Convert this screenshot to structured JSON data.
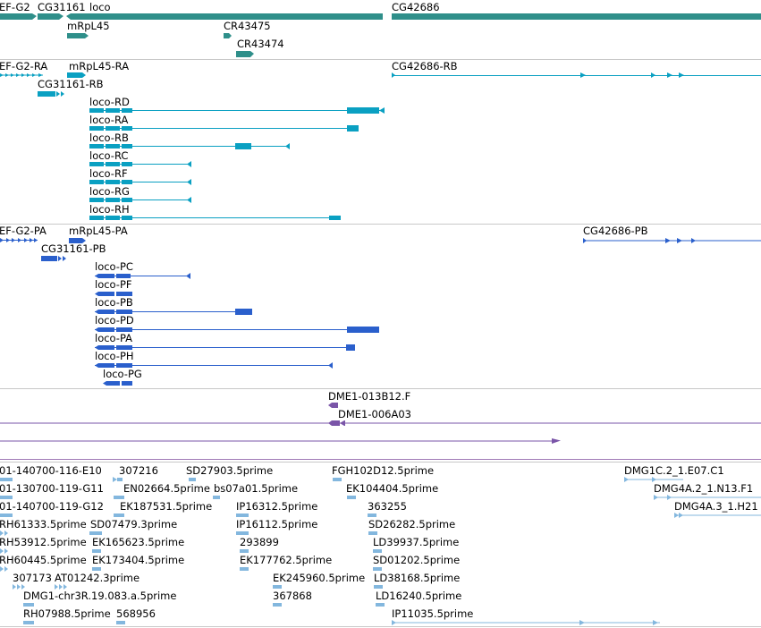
{
  "colors": {
    "gene": "#2f8f8a",
    "transcript_rna": "#0aa0c2",
    "protein": "#2a5fcc",
    "clone": "#7a55a8",
    "est": "#83b7de",
    "separator": "#c8c8c8"
  },
  "tracks": {
    "genes": {
      "labels": [
        {
          "text": "EF-G2"
        },
        {
          "text": "CG31161"
        },
        {
          "text": "loco"
        },
        {
          "text": "CG42686"
        },
        {
          "text": "mRpL45"
        },
        {
          "text": "CR43475"
        },
        {
          "text": "CR43474"
        }
      ]
    },
    "transcripts": {
      "labels": [
        {
          "text": "EF-G2-RA"
        },
        {
          "text": "mRpL45-RA"
        },
        {
          "text": "CG42686-RB"
        },
        {
          "text": "CG31161-RB"
        },
        {
          "text": "loco-RD"
        },
        {
          "text": "loco-RA"
        },
        {
          "text": "loco-RB"
        },
        {
          "text": "loco-RC"
        },
        {
          "text": "loco-RF"
        },
        {
          "text": "loco-RG"
        },
        {
          "text": "loco-RH"
        }
      ]
    },
    "proteins": {
      "labels": [
        {
          "text": "EF-G2-PA"
        },
        {
          "text": "mRpL45-PA"
        },
        {
          "text": "CG42686-PB"
        },
        {
          "text": "CG31161-PB"
        },
        {
          "text": "loco-PC"
        },
        {
          "text": "loco-PF"
        },
        {
          "text": "loco-PB"
        },
        {
          "text": "loco-PD"
        },
        {
          "text": "loco-PA"
        },
        {
          "text": "loco-PH"
        },
        {
          "text": "loco-PG"
        }
      ]
    },
    "clones": {
      "labels": [
        {
          "text": "DME1-013B12.F"
        },
        {
          "text": "DME1-006A03"
        }
      ]
    },
    "ests": {
      "labels": [
        {
          "text": "01-140700-116-E10"
        },
        {
          "text": "307216"
        },
        {
          "text": "SD27903.5prime"
        },
        {
          "text": "FGH102D12.5prime"
        },
        {
          "text": "DMG1C.2_1.E07.C1"
        },
        {
          "text": "01-130700-119-G11"
        },
        {
          "text": "EN02664.5prime"
        },
        {
          "text": "bs07a01.5prime"
        },
        {
          "text": "EK104404.5prime"
        },
        {
          "text": "DMG4A.2_1.N13.F1"
        },
        {
          "text": "01-140700-119-G12"
        },
        {
          "text": "EK187531.5prime"
        },
        {
          "text": "IP16312.5prime"
        },
        {
          "text": "363255"
        },
        {
          "text": "DMG4A.3_1.H21"
        },
        {
          "text": "RH61333.5prime"
        },
        {
          "text": "SD07479.3prime"
        },
        {
          "text": "IP16112.5prime"
        },
        {
          "text": "SD26282.5prime"
        },
        {
          "text": "RH53912.5prime"
        },
        {
          "text": "EK165623.5prime"
        },
        {
          "text": "293899"
        },
        {
          "text": "LD39937.5prime"
        },
        {
          "text": "RH60445.5prime"
        },
        {
          "text": "EK173404.5prime"
        },
        {
          "text": "EK177762.5prime"
        },
        {
          "text": "SD01202.5prime"
        },
        {
          "text": "307173"
        },
        {
          "text": "AT01242.3prime"
        },
        {
          "text": "EK245960.5prime"
        },
        {
          "text": "LD38168.5prime"
        },
        {
          "text": "DMG1-chr3R.19.083.a.5prime"
        },
        {
          "text": "367868"
        },
        {
          "text": "LD16240.5prime"
        },
        {
          "text": "RH07988.5prime"
        },
        {
          "text": "568956"
        },
        {
          "text": "IP11035.5prime"
        }
      ]
    }
  }
}
